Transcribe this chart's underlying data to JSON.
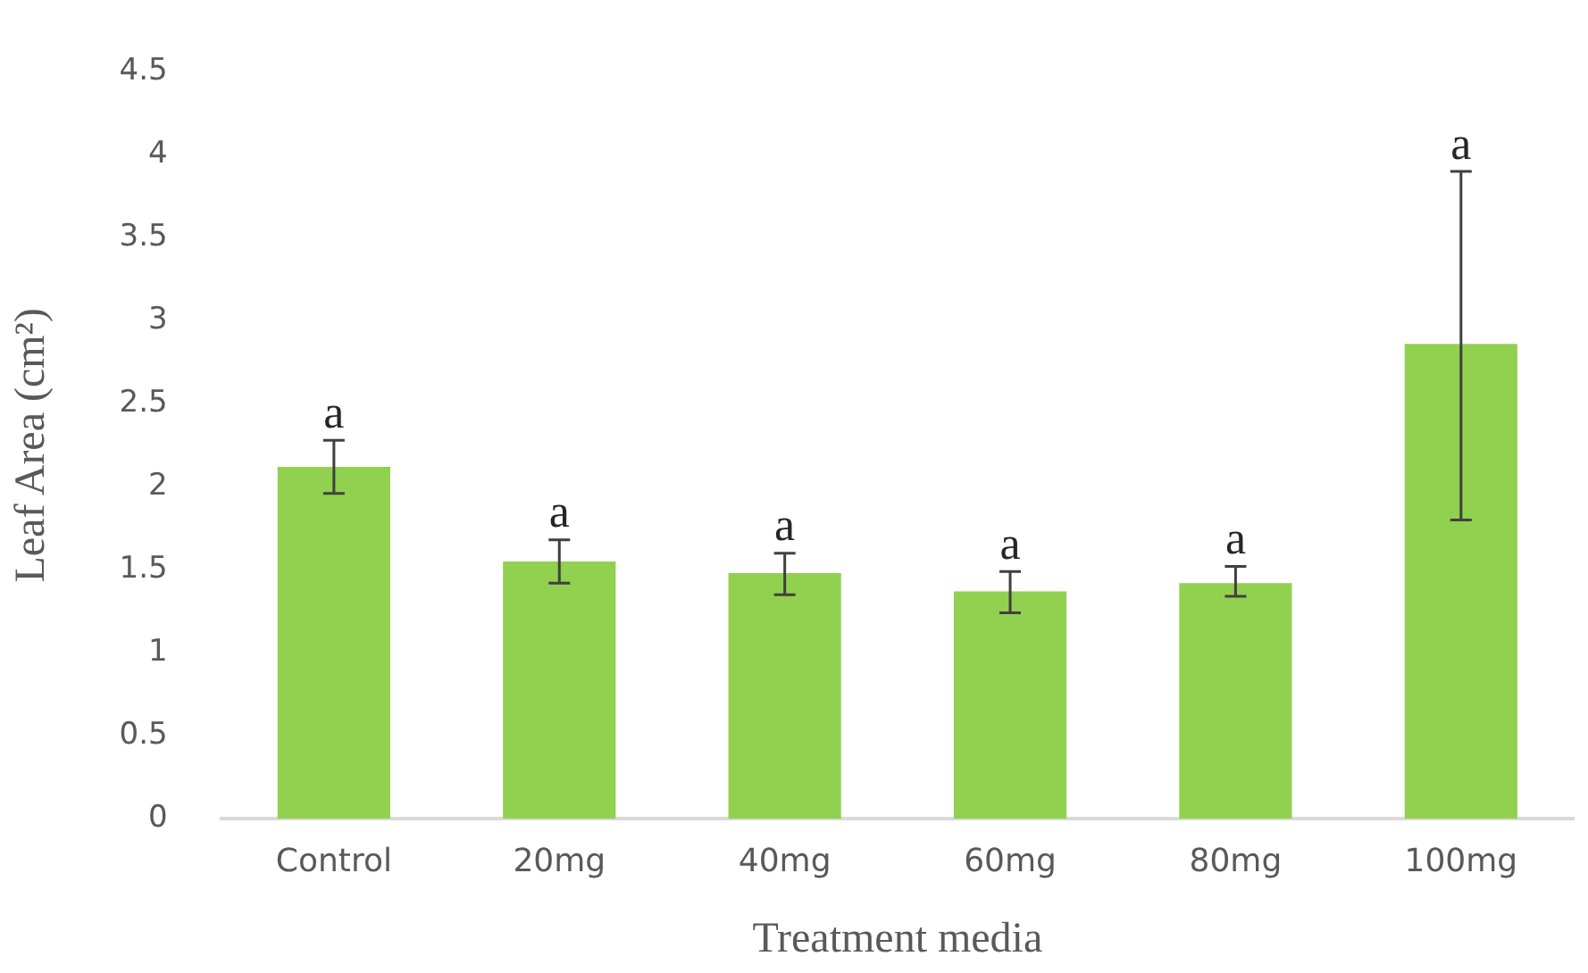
{
  "chart_data": {
    "type": "bar",
    "xlabel": "Treatment media",
    "ylabel": "Leaf Area (cm²)",
    "categories": [
      "Control",
      "20mg",
      "40mg",
      "60mg",
      "80mg",
      "100mg"
    ],
    "values": [
      2.12,
      1.55,
      1.48,
      1.37,
      1.42,
      2.86
    ],
    "errors": [
      [
        1.96,
        2.28
      ],
      [
        1.42,
        1.68
      ],
      [
        1.35,
        1.6
      ],
      [
        1.24,
        1.49
      ],
      [
        1.34,
        1.52
      ],
      [
        1.8,
        3.9
      ]
    ],
    "color": "#92d050",
    "ylim": [
      0,
      4.5
    ],
    "yticks": [
      0,
      0.5,
      1,
      1.5,
      2,
      2.5,
      3,
      3.5,
      4,
      4.5
    ],
    "grid": false,
    "legend": false,
    "annotations": [
      {
        "text": "a",
        "x": "Control",
        "y": 2.28
      },
      {
        "text": "a",
        "x": "20mg",
        "y": 1.68
      },
      {
        "text": "a",
        "x": "40mg",
        "y": 1.6
      },
      {
        "text": "a",
        "x": "60mg",
        "y": 1.49
      },
      {
        "text": "a",
        "x": "80mg",
        "y": 1.52
      },
      {
        "text": "a",
        "x": "100mg",
        "y": 3.9
      }
    ]
  }
}
